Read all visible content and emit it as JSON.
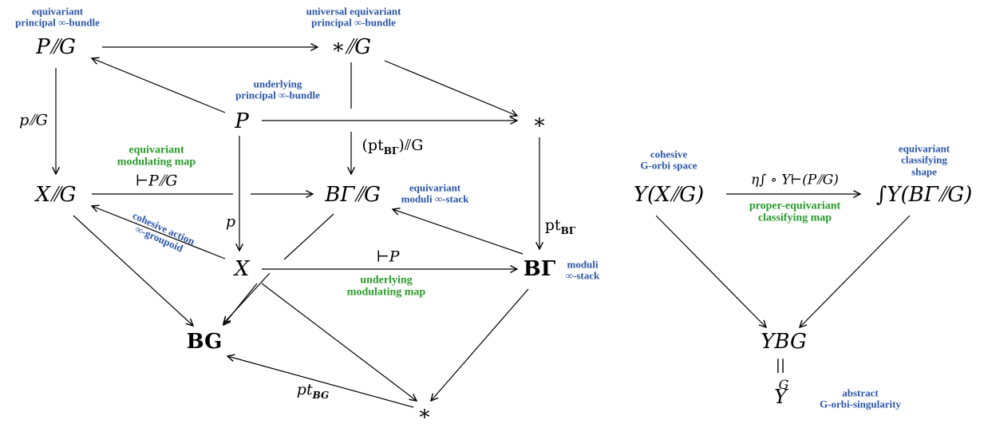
{
  "nodes": {
    "p_mod_g": "P⫽G",
    "star_mod_g": "∗⫽G",
    "p": "P",
    "star_top": "∗",
    "x_mod_g": "X⫽G",
    "bgamma_mod_g": "BΓ⫽G",
    "x": "X",
    "bgamma": "BΓ",
    "bg": "BG",
    "star_bottom": "∗",
    "shape_x_mod_g": "Υ(X⫽G)",
    "shape_bgamma": "∫Υ(BΓ⫽G)",
    "shape_bg": "ΥBG",
    "equals": "||",
    "orbi_g": "Υ",
    "orbi_g_sup": "G"
  },
  "arrow_labels": {
    "p_mod_g_arrow": "p⫽G",
    "pt_bgamma_mod_g": "(pt",
    "pt_bgamma_mod_g_sub": "BΓ",
    "pt_bgamma_mod_g_end": ")⫽G",
    "mod_map_equiv": "⊢P⫽G",
    "p_arrow": "p",
    "pt_bgamma": "pt",
    "pt_bgamma_sub": "BΓ",
    "mod_map": "⊢P",
    "pt_bg": "pt",
    "pt_bg_sub": "BG",
    "shape_map": "η∫ ∘ Υ⊢(P⫽G)"
  },
  "annotations": {
    "equivariant_principal": "equivariant\nprincipal ∞-bundle",
    "universal_equivariant": "universal equivariant\nprincipal ∞-bundle",
    "underlying_principal": "underlying\nprincipal ∞-bundle",
    "equivariant_modulating": "equivariant\nmodulating map",
    "equivariant_moduli": "equivariant\nmoduli ∞-stack",
    "cohesive_action": "cohesive action\n∞-groupoid",
    "moduli_stack": "moduli\n∞-stack",
    "underlying_modulating": "underlying\nmodulating map",
    "cohesive_orbi": "cohesive\nG-orbi space",
    "equivariant_classifying": "equivariant\nclassifying shape",
    "proper_equivariant": "proper-equivariant\nclassifying map",
    "abstract_orbi": "abstract\nG-orbi-singularity"
  }
}
